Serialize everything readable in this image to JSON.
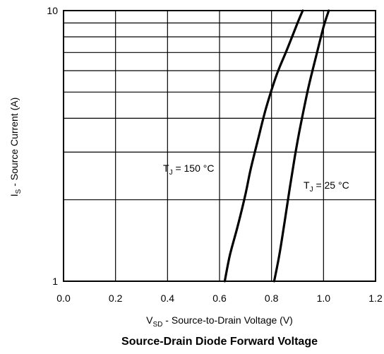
{
  "chart_data": {
    "type": "line",
    "title": "Source-Drain Diode Forward Voltage",
    "xlabel": {
      "main": "V",
      "sub": "SD",
      "rest": " - Source-to-Drain Voltage (V)"
    },
    "ylabel": {
      "main": "I",
      "sub": "S",
      "rest": " - Source Current (A)"
    },
    "xlim": [
      0.0,
      1.2
    ],
    "ylim": [
      1,
      10
    ],
    "yscale": "log",
    "grid": true,
    "x_ticks": [
      "0.0",
      "0.2",
      "0.4",
      "0.6",
      "0.8",
      "1.0",
      "1.2"
    ],
    "y_ticks": [
      "1",
      "10"
    ],
    "series": [
      {
        "label": {
          "main": "T",
          "sub": "J",
          "rest": " = 150 °C"
        },
        "x": [
          0.62,
          0.64,
          0.67,
          0.7,
          0.72,
          0.75,
          0.78,
          0.82,
          0.86,
          0.9,
          0.92
        ],
        "y": [
          1.0,
          1.25,
          1.6,
          2.1,
          2.6,
          3.4,
          4.4,
          5.8,
          7.2,
          9.0,
          10.0
        ]
      },
      {
        "label": {
          "main": "T",
          "sub": "J",
          "rest": " = 25 °C"
        },
        "x": [
          0.81,
          0.83,
          0.85,
          0.87,
          0.89,
          0.91,
          0.94,
          0.97,
          1.0,
          1.02
        ],
        "y": [
          1.0,
          1.25,
          1.65,
          2.2,
          2.9,
          3.7,
          5.1,
          6.7,
          8.7,
          10.0
        ]
      }
    ],
    "line_color": "#000000"
  }
}
